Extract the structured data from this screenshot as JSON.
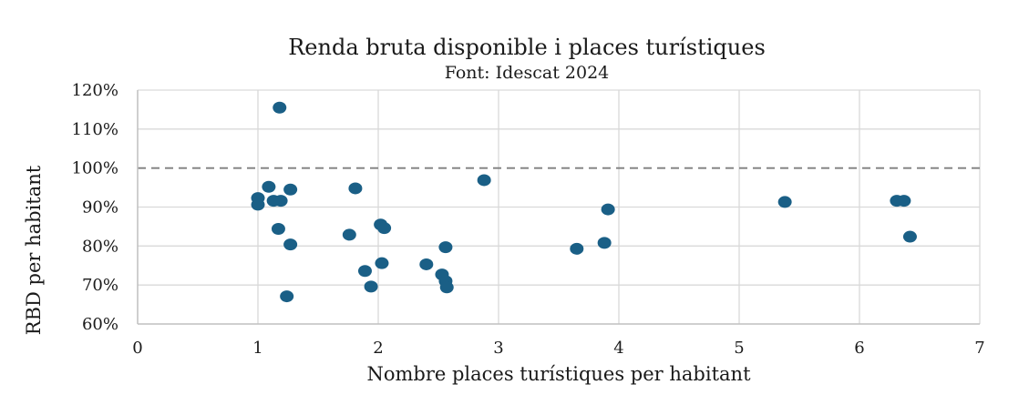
{
  "chart_data": {
    "type": "scatter",
    "title": "Renda bruta disponible  i places turístiques",
    "subtitle": "Font: Idescat 2024",
    "xlabel": "Nombre places turístiques per habitant",
    "ylabel": "RBD per habitant",
    "xlim": [
      0,
      7
    ],
    "ylim": [
      60,
      120
    ],
    "x_ticks": [
      0,
      1,
      2,
      3,
      4,
      5,
      6,
      7
    ],
    "x_tick_labels": [
      "0",
      "1",
      "2",
      "3",
      "4",
      "5",
      "6",
      "7"
    ],
    "y_ticks": [
      60,
      70,
      80,
      90,
      100,
      110,
      120
    ],
    "y_tick_labels": [
      "60%",
      "70%",
      "80%",
      "90%",
      "100%",
      "110%",
      "120%"
    ],
    "grid": true,
    "reference_line": {
      "y": 100,
      "style": "dashed",
      "color": "#7f7f7f"
    },
    "marker_color": "#1a5f86",
    "points": [
      {
        "x": 1.18,
        "y": 115.5
      },
      {
        "x": 1.0,
        "y": 92.3
      },
      {
        "x": 1.0,
        "y": 90.6
      },
      {
        "x": 1.09,
        "y": 95.2
      },
      {
        "x": 1.13,
        "y": 91.6
      },
      {
        "x": 1.19,
        "y": 91.6
      },
      {
        "x": 1.27,
        "y": 94.5
      },
      {
        "x": 1.17,
        "y": 84.4
      },
      {
        "x": 1.27,
        "y": 80.4
      },
      {
        "x": 1.24,
        "y": 67.1
      },
      {
        "x": 1.81,
        "y": 94.8
      },
      {
        "x": 1.76,
        "y": 82.9
      },
      {
        "x": 1.89,
        "y": 73.6
      },
      {
        "x": 1.94,
        "y": 69.6
      },
      {
        "x": 2.02,
        "y": 85.5
      },
      {
        "x": 2.05,
        "y": 84.6
      },
      {
        "x": 2.03,
        "y": 75.6
      },
      {
        "x": 2.4,
        "y": 75.3
      },
      {
        "x": 2.53,
        "y": 72.7
      },
      {
        "x": 2.56,
        "y": 71.0
      },
      {
        "x": 2.57,
        "y": 69.4
      },
      {
        "x": 2.56,
        "y": 79.7
      },
      {
        "x": 2.88,
        "y": 96.9
      },
      {
        "x": 3.65,
        "y": 79.3
      },
      {
        "x": 3.88,
        "y": 80.8
      },
      {
        "x": 3.91,
        "y": 89.4
      },
      {
        "x": 5.38,
        "y": 91.3
      },
      {
        "x": 6.31,
        "y": 91.6
      },
      {
        "x": 6.37,
        "y": 91.6
      },
      {
        "x": 6.42,
        "y": 82.4
      }
    ]
  }
}
